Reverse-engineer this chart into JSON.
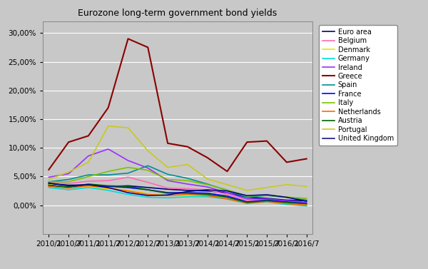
{
  "title": "Eurozone long-term government bond yields",
  "background_color": "#c8c8c8",
  "plot_bg_color": "#c8c8c8",
  "ylim": [
    -5.0,
    32.0
  ],
  "yticks": [
    0.0,
    5.0,
    10.0,
    15.0,
    20.0,
    25.0,
    30.0
  ],
  "xtick_labels": [
    "2010/1",
    "2010/7",
    "2011/1",
    "2011/7",
    "2012/1",
    "2012/7",
    "2013/1",
    "2013/7",
    "2014/1",
    "2014/7",
    "2015/1",
    "2015/7",
    "2016/1",
    "2016/7"
  ],
  "series": {
    "Euro area": {
      "color": "#00007F",
      "lw": 1.2,
      "data": [
        3.8,
        3.5,
        3.55,
        3.3,
        3.4,
        3.1,
        2.8,
        2.6,
        2.5,
        2.2,
        1.4,
        1.2,
        0.9,
        0.8
      ]
    },
    "Belgium": {
      "color": "#FF69B4",
      "lw": 1.2,
      "data": [
        3.9,
        3.8,
        4.2,
        4.3,
        4.9,
        4.0,
        3.0,
        2.9,
        2.7,
        1.9,
        0.8,
        0.95,
        0.65,
        0.45
      ]
    },
    "Denmark": {
      "color": "#E8E800",
      "lw": 1.2,
      "data": [
        3.6,
        3.1,
        3.2,
        2.9,
        2.6,
        2.0,
        1.7,
        1.7,
        1.7,
        1.4,
        0.6,
        0.65,
        0.35,
        0.2
      ]
    },
    "Germany": {
      "color": "#00DDDD",
      "lw": 1.2,
      "data": [
        3.1,
        2.7,
        3.1,
        2.6,
        1.9,
        1.4,
        1.3,
        1.5,
        1.5,
        1.1,
        0.3,
        0.6,
        0.15,
        -0.1
      ]
    },
    "Ireland": {
      "color": "#9B30FF",
      "lw": 1.2,
      "data": [
        4.9,
        5.5,
        8.6,
        9.8,
        7.8,
        6.5,
        4.3,
        3.7,
        3.2,
        2.2,
        1.1,
        1.1,
        0.8,
        0.5
      ]
    },
    "Greece": {
      "color": "#8B0000",
      "lw": 1.5,
      "data": [
        6.2,
        11.0,
        12.1,
        17.0,
        29.0,
        27.5,
        10.8,
        10.2,
        8.3,
        5.9,
        11.0,
        11.2,
        7.5,
        8.1
      ]
    },
    "Spain": {
      "color": "#009090",
      "lw": 1.2,
      "data": [
        4.1,
        4.5,
        5.3,
        5.3,
        5.6,
        6.9,
        5.4,
        4.7,
        3.7,
        2.6,
        1.4,
        1.7,
        1.4,
        0.9
      ]
    },
    "France": {
      "color": "#0000FF",
      "lw": 1.2,
      "data": [
        3.5,
        3.1,
        3.6,
        3.3,
        3.1,
        2.7,
        2.2,
        2.2,
        2.1,
        1.6,
        0.6,
        0.9,
        0.6,
        0.3
      ]
    },
    "Italy": {
      "color": "#80C000",
      "lw": 1.2,
      "data": [
        4.1,
        4.1,
        5.0,
        5.9,
        6.6,
        6.1,
        4.5,
        4.3,
        3.6,
        2.7,
        1.6,
        1.75,
        1.45,
        1.2
      ]
    },
    "Netherlands": {
      "color": "#FF6600",
      "lw": 1.2,
      "data": [
        3.3,
        3.0,
        3.4,
        3.0,
        2.5,
        1.9,
        1.7,
        1.9,
        1.7,
        1.1,
        0.4,
        0.65,
        0.3,
        0.0
      ]
    },
    "Austria": {
      "color": "#006400",
      "lw": 1.2,
      "data": [
        3.5,
        3.2,
        3.7,
        3.4,
        3.3,
        2.7,
        2.1,
        2.1,
        1.9,
        1.4,
        0.5,
        0.8,
        0.5,
        0.25
      ]
    },
    "Portugal": {
      "color": "#C8C820",
      "lw": 1.2,
      "data": [
        4.5,
        5.8,
        7.5,
        13.8,
        13.5,
        9.5,
        6.6,
        7.1,
        4.6,
        3.6,
        2.6,
        3.1,
        3.6,
        3.3
      ]
    },
    "United Kingdom": {
      "color": "#000080",
      "lw": 1.1,
      "data": [
        3.9,
        3.4,
        3.6,
        3.1,
        2.2,
        1.7,
        1.8,
        2.4,
        2.7,
        2.5,
        1.7,
        1.85,
        1.4,
        0.7
      ]
    }
  }
}
